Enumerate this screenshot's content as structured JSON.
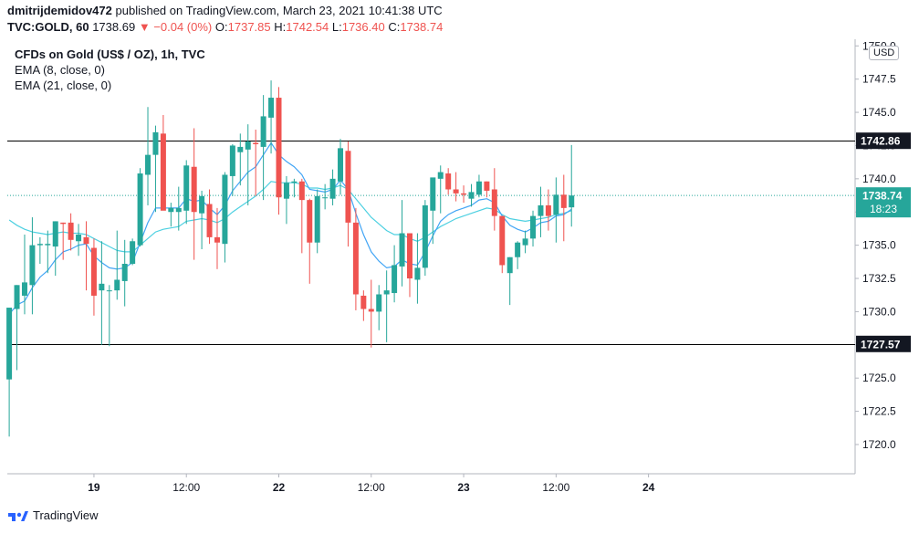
{
  "header": {
    "publisher": "dmitrijdemidov472",
    "published_text": "published on TradingView.com, March 23, 2021 10:41:38 UTC",
    "symbol": "TVC:GOLD, 60",
    "last": "1738.69",
    "change": "▼ −0.04 (0%)",
    "o_label": "O:",
    "o_value": "1737.85",
    "h_label": "H:",
    "h_value": "1742.54",
    "l_label": "L:",
    "l_value": "1736.40",
    "c_label": "C:",
    "c_value": "1738.74"
  },
  "legend": {
    "title": "CFDs on Gold (US$ / OZ), 1h, TVC",
    "ema1": "EMA (8, close, 0)",
    "ema2": "EMA (21, close, 0)"
  },
  "currency": "USD",
  "footer": {
    "brand": "TradingView"
  },
  "colors": {
    "up": "#26a69a",
    "down": "#ef5350",
    "ema_fast": "#42a5f5",
    "ema_slow": "#4dd0e1",
    "axis": "#b2b5be",
    "label_dark": "#131722"
  },
  "chart_data": {
    "type": "candlestick",
    "title": "CFDs on Gold (US$ / OZ), 1h, TVC",
    "y_range": [
      1717.8,
      1750.5
    ],
    "y_ticks": [
      1720.0,
      1722.5,
      1725.0,
      1727.5,
      1730.0,
      1732.5,
      1735.0,
      1737.5,
      1740.0,
      1742.5,
      1745.0,
      1747.5,
      1750.0
    ],
    "x_labels": [
      {
        "label": "19",
        "index": 11
      },
      {
        "label": "12:00",
        "index": 23
      },
      {
        "label": "22",
        "index": 35
      },
      {
        "label": "12:00",
        "index": 47
      },
      {
        "label": "23",
        "index": 59
      },
      {
        "label": "12:00",
        "index": 71
      },
      {
        "label": "24",
        "index": 83
      }
    ],
    "horizontal_lines": [
      {
        "price": 1742.86,
        "label": "1742.86"
      },
      {
        "price": 1727.57,
        "label": "1727.57"
      }
    ],
    "last_price": {
      "price": 1738.74,
      "label": "1738.74",
      "countdown": "18:23"
    },
    "candles": [
      {
        "o": 1724.9,
        "h": 1730.2,
        "l": 1720.6,
        "c": 1730.3
      },
      {
        "o": 1730.2,
        "h": 1732.0,
        "l": 1725.6,
        "c": 1732.0
      },
      {
        "o": 1731.2,
        "h": 1735.8,
        "l": 1729.8,
        "c": 1732.2
      },
      {
        "o": 1732.0,
        "h": 1737.1,
        "l": 1729.8,
        "c": 1735.0
      },
      {
        "o": 1735.0,
        "h": 1735.6,
        "l": 1733.6,
        "c": 1735.1
      },
      {
        "o": 1735.0,
        "h": 1736.1,
        "l": 1732.9,
        "c": 1735.1
      },
      {
        "o": 1734.9,
        "h": 1736.8,
        "l": 1732.7,
        "c": 1736.8
      },
      {
        "o": 1736.7,
        "h": 1736.7,
        "l": 1733.9,
        "c": 1736.6
      },
      {
        "o": 1736.7,
        "h": 1737.4,
        "l": 1734.6,
        "c": 1735.4
      },
      {
        "o": 1735.3,
        "h": 1736.6,
        "l": 1734.2,
        "c": 1735.8
      },
      {
        "o": 1735.6,
        "h": 1736.8,
        "l": 1731.6,
        "c": 1735.1
      },
      {
        "o": 1734.8,
        "h": 1735.5,
        "l": 1729.7,
        "c": 1731.2
      },
      {
        "o": 1731.6,
        "h": 1735.3,
        "l": 1727.5,
        "c": 1732.1
      },
      {
        "o": 1731.6,
        "h": 1732.0,
        "l": 1727.4,
        "c": 1731.6
      },
      {
        "o": 1731.6,
        "h": 1736.1,
        "l": 1730.9,
        "c": 1732.4
      },
      {
        "o": 1732.3,
        "h": 1735.4,
        "l": 1730.4,
        "c": 1733.6
      },
      {
        "o": 1733.6,
        "h": 1735.5,
        "l": 1733.5,
        "c": 1735.3
      },
      {
        "o": 1735.0,
        "h": 1740.8,
        "l": 1734.9,
        "c": 1740.4
      },
      {
        "o": 1740.3,
        "h": 1745.4,
        "l": 1738.0,
        "c": 1741.8
      },
      {
        "o": 1741.8,
        "h": 1744.0,
        "l": 1737.5,
        "c": 1743.5
      },
      {
        "o": 1743.4,
        "h": 1744.8,
        "l": 1737.8,
        "c": 1737.6
      },
      {
        "o": 1737.5,
        "h": 1738.2,
        "l": 1736.4,
        "c": 1737.8
      },
      {
        "o": 1737.5,
        "h": 1739.4,
        "l": 1736.1,
        "c": 1737.8
      },
      {
        "o": 1737.6,
        "h": 1741.4,
        "l": 1736.6,
        "c": 1741.0
      },
      {
        "o": 1740.9,
        "h": 1743.8,
        "l": 1733.9,
        "c": 1737.5
      },
      {
        "o": 1737.4,
        "h": 1739.1,
        "l": 1734.7,
        "c": 1738.7
      },
      {
        "o": 1738.1,
        "h": 1739.2,
        "l": 1735.1,
        "c": 1735.6
      },
      {
        "o": 1735.6,
        "h": 1737.8,
        "l": 1733.2,
        "c": 1735.2
      },
      {
        "o": 1735.1,
        "h": 1740.5,
        "l": 1733.7,
        "c": 1740.3
      },
      {
        "o": 1740.2,
        "h": 1742.6,
        "l": 1738.7,
        "c": 1742.5
      },
      {
        "o": 1742.0,
        "h": 1743.4,
        "l": 1739.5,
        "c": 1742.4
      },
      {
        "o": 1742.2,
        "h": 1744.1,
        "l": 1738.0,
        "c": 1742.8
      },
      {
        "o": 1742.7,
        "h": 1743.7,
        "l": 1738.7,
        "c": 1742.6
      },
      {
        "o": 1742.4,
        "h": 1746.3,
        "l": 1738.4,
        "c": 1744.7
      },
      {
        "o": 1744.6,
        "h": 1747.4,
        "l": 1741.9,
        "c": 1746.1
      },
      {
        "o": 1746.1,
        "h": 1746.9,
        "l": 1737.3,
        "c": 1738.6
      },
      {
        "o": 1738.5,
        "h": 1740.2,
        "l": 1736.6,
        "c": 1739.7
      },
      {
        "o": 1739.7,
        "h": 1740.0,
        "l": 1738.6,
        "c": 1739.8
      },
      {
        "o": 1739.8,
        "h": 1740.0,
        "l": 1734.4,
        "c": 1738.4
      },
      {
        "o": 1738.4,
        "h": 1738.5,
        "l": 1732.1,
        "c": 1735.2
      },
      {
        "o": 1735.2,
        "h": 1739.2,
        "l": 1734.4,
        "c": 1738.7
      },
      {
        "o": 1738.6,
        "h": 1739.6,
        "l": 1737.7,
        "c": 1738.6
      },
      {
        "o": 1738.5,
        "h": 1740.7,
        "l": 1738.0,
        "c": 1740.0
      },
      {
        "o": 1739.8,
        "h": 1743.0,
        "l": 1738.8,
        "c": 1742.3
      },
      {
        "o": 1742.1,
        "h": 1742.8,
        "l": 1734.9,
        "c": 1736.7
      },
      {
        "o": 1736.7,
        "h": 1737.8,
        "l": 1730.1,
        "c": 1731.3
      },
      {
        "o": 1731.2,
        "h": 1731.6,
        "l": 1729.3,
        "c": 1730.2
      },
      {
        "o": 1730.2,
        "h": 1732.4,
        "l": 1727.3,
        "c": 1730.0
      },
      {
        "o": 1730.0,
        "h": 1732.0,
        "l": 1728.6,
        "c": 1731.3
      },
      {
        "o": 1731.3,
        "h": 1733.1,
        "l": 1727.7,
        "c": 1731.6
      },
      {
        "o": 1731.4,
        "h": 1735.0,
        "l": 1730.7,
        "c": 1733.5
      },
      {
        "o": 1733.4,
        "h": 1738.4,
        "l": 1731.9,
        "c": 1735.9
      },
      {
        "o": 1735.9,
        "h": 1735.9,
        "l": 1731.1,
        "c": 1732.5
      },
      {
        "o": 1732.4,
        "h": 1735.9,
        "l": 1730.6,
        "c": 1733.3
      },
      {
        "o": 1733.3,
        "h": 1738.4,
        "l": 1732.7,
        "c": 1738.0
      },
      {
        "o": 1737.6,
        "h": 1740.0,
        "l": 1735.1,
        "c": 1740.1
      },
      {
        "o": 1740.0,
        "h": 1741.0,
        "l": 1737.4,
        "c": 1740.5
      },
      {
        "o": 1740.4,
        "h": 1740.8,
        "l": 1738.8,
        "c": 1739.2
      },
      {
        "o": 1739.2,
        "h": 1740.5,
        "l": 1738.3,
        "c": 1738.9
      },
      {
        "o": 1738.9,
        "h": 1739.5,
        "l": 1738.2,
        "c": 1738.8
      },
      {
        "o": 1738.5,
        "h": 1739.6,
        "l": 1737.9,
        "c": 1739.0
      },
      {
        "o": 1738.8,
        "h": 1740.3,
        "l": 1738.6,
        "c": 1739.8
      },
      {
        "o": 1739.8,
        "h": 1739.8,
        "l": 1738.6,
        "c": 1739.1
      },
      {
        "o": 1739.2,
        "h": 1740.8,
        "l": 1736.1,
        "c": 1737.2
      },
      {
        "o": 1737.2,
        "h": 1737.2,
        "l": 1732.9,
        "c": 1733.5
      },
      {
        "o": 1732.9,
        "h": 1734.1,
        "l": 1730.5,
        "c": 1734.1
      },
      {
        "o": 1734.1,
        "h": 1735.3,
        "l": 1733.2,
        "c": 1735.2
      },
      {
        "o": 1735.0,
        "h": 1736.1,
        "l": 1734.4,
        "c": 1735.5
      },
      {
        "o": 1735.5,
        "h": 1737.6,
        "l": 1734.9,
        "c": 1737.2
      },
      {
        "o": 1737.2,
        "h": 1739.4,
        "l": 1735.6,
        "c": 1738.0
      },
      {
        "o": 1738.0,
        "h": 1739.2,
        "l": 1736.1,
        "c": 1737.2
      },
      {
        "o": 1737.3,
        "h": 1740.1,
        "l": 1735.2,
        "c": 1738.8
      },
      {
        "o": 1738.8,
        "h": 1740.3,
        "l": 1735.3,
        "c": 1737.8
      },
      {
        "o": 1737.85,
        "h": 1742.54,
        "l": 1736.4,
        "c": 1738.74
      }
    ],
    "ema_fast": [
      1729.8,
      1730.5,
      1730.8,
      1731.8,
      1732.6,
      1733.1,
      1733.9,
      1734.5,
      1734.7,
      1735.0,
      1735.1,
      1734.2,
      1733.7,
      1733.3,
      1733.2,
      1733.3,
      1733.7,
      1735.2,
      1736.7,
      1737.8,
      1737.8,
      1737.8,
      1737.8,
      1738.5,
      1738.3,
      1738.4,
      1737.8,
      1737.3,
      1738.0,
      1739.1,
      1739.8,
      1740.5,
      1740.9,
      1741.8,
      1742.7,
      1741.8,
      1741.3,
      1740.9,
      1740.3,
      1739.2,
      1739.1,
      1739.0,
      1739.2,
      1739.9,
      1739.2,
      1737.4,
      1735.8,
      1734.5,
      1733.8,
      1733.3,
      1733.4,
      1733.9,
      1733.6,
      1733.5,
      1734.5,
      1735.7,
      1736.8,
      1737.3,
      1737.6,
      1737.8,
      1738.0,
      1738.4,
      1738.5,
      1738.2,
      1737.2,
      1736.5,
      1736.2,
      1736.0,
      1736.3,
      1736.7,
      1736.8,
      1737.2,
      1737.3,
      1737.7
    ],
    "ema_slow": [
      1736.9,
      1736.5,
      1736.2,
      1736.0,
      1735.9,
      1735.8,
      1735.9,
      1736.0,
      1735.9,
      1735.9,
      1735.8,
      1735.5,
      1735.2,
      1734.9,
      1734.6,
      1734.5,
      1734.5,
      1735.0,
      1735.5,
      1736.0,
      1736.2,
      1736.3,
      1736.4,
      1736.8,
      1736.9,
      1737.0,
      1736.9,
      1736.7,
      1737.0,
      1737.5,
      1737.9,
      1738.3,
      1738.7,
      1739.2,
      1739.8,
      1739.7,
      1739.7,
      1739.7,
      1739.6,
      1739.3,
      1739.3,
      1739.2,
      1739.3,
      1739.5,
      1739.2,
      1738.5,
      1737.8,
      1737.1,
      1736.6,
      1736.1,
      1735.8,
      1735.8,
      1735.5,
      1735.3,
      1735.6,
      1736.0,
      1736.4,
      1736.7,
      1737.0,
      1737.2,
      1737.4,
      1737.6,
      1737.8,
      1737.7,
      1737.3,
      1737.0,
      1736.9,
      1736.8,
      1736.9,
      1737.0,
      1737.1,
      1737.3,
      1737.4,
      1737.6
    ]
  }
}
